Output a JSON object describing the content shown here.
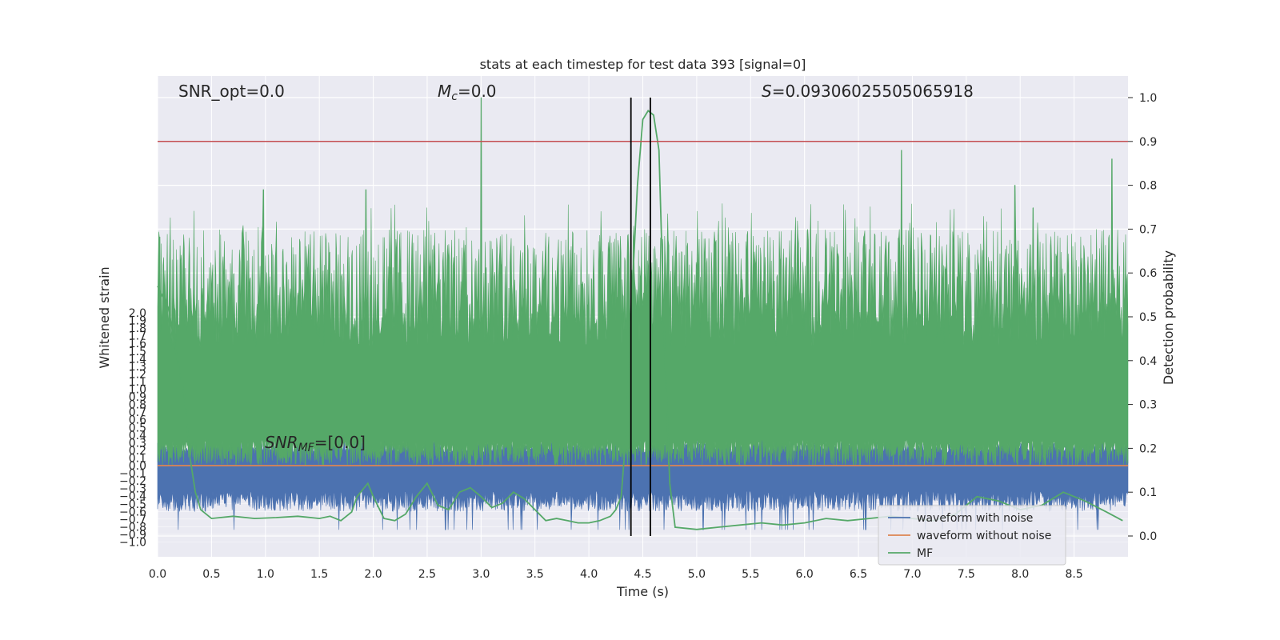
{
  "chart_data": {
    "type": "line",
    "title": "stats at each timestep for test data 393 [signal=0]",
    "xlabel": "Time (s)",
    "ylabel_left": "Whitened strain",
    "ylabel_right": "Detection probability",
    "xlim": [
      0.0,
      9.0
    ],
    "ylim_left": [
      -1.06,
      2.0
    ],
    "ylim_right": [
      -0.05,
      1.05
    ],
    "x_ticks": [
      "0.0",
      "0.5",
      "1.0",
      "1.5",
      "2.0",
      "2.5",
      "3.0",
      "3.5",
      "4.0",
      "4.5",
      "5.0",
      "5.5",
      "6.0",
      "6.5",
      "7.0",
      "7.5",
      "8.0",
      "8.5"
    ],
    "y_left_ticks": [
      "-1.0",
      "-0.9",
      "-0.8",
      "-0.7",
      "-0.6",
      "-0.5",
      "-0.4",
      "-0.3",
      "-0.2",
      "-0.1",
      "0.0",
      "0.1",
      "0.2",
      "0.3",
      "0.4",
      "0.5",
      "0.6",
      "0.7",
      "0.8",
      "0.9",
      "1.0",
      "1.1",
      "1.2",
      "1.3",
      "1.4",
      "1.5",
      "1.6",
      "1.7",
      "1.8",
      "1.9",
      "2.0"
    ],
    "y_right_ticks": [
      "0.0",
      "0.1",
      "0.2",
      "0.3",
      "0.4",
      "0.5",
      "0.6",
      "0.7",
      "0.8",
      "0.9",
      "1.0"
    ],
    "grid": true,
    "legend_position": "lower-right",
    "annotations": {
      "snr_opt": "SNR_opt=0.0",
      "mc": "=0.0",
      "s": "=0.09306025505065918",
      "snr_mf": "=[0.0]"
    },
    "threshold": {
      "value": 0.9,
      "axis": "right",
      "color": "#c44e52"
    },
    "vlines": [
      4.39,
      4.57
    ],
    "series": [
      {
        "name": "waveform with noise",
        "color": "#4c72b0",
        "axis": "left",
        "style": "noise band",
        "y_range": [
          -0.6,
          0.3
        ]
      },
      {
        "name": "waveform without noise",
        "color": "#dd8452",
        "axis": "left",
        "constant": 0.0
      },
      {
        "name": "MF",
        "color": "#55a868",
        "axis": "right",
        "x": [
          0.0,
          0.1,
          0.2,
          0.25,
          0.3,
          0.35,
          0.4,
          0.5,
          0.7,
          0.9,
          1.1,
          1.3,
          1.5,
          1.6,
          1.7,
          1.8,
          1.85,
          1.95,
          2.0,
          2.1,
          2.2,
          2.3,
          2.4,
          2.5,
          2.6,
          2.7,
          2.8,
          2.9,
          3.0,
          3.1,
          3.2,
          3.3,
          3.4,
          3.6,
          3.7,
          3.8,
          3.9,
          4.0,
          4.1,
          4.2,
          4.25,
          4.3,
          4.35,
          4.4,
          4.45,
          4.5,
          4.55,
          4.6,
          4.65,
          4.7,
          4.75,
          4.8,
          5.0,
          5.2,
          5.4,
          5.6,
          5.8,
          6.0,
          6.2,
          6.4,
          6.6,
          6.8,
          7.0,
          7.2,
          7.4,
          7.6,
          7.8,
          8.0,
          8.2,
          8.4,
          8.6,
          8.8,
          8.95
        ],
        "y": [
          0.57,
          0.52,
          0.38,
          0.32,
          0.18,
          0.1,
          0.06,
          0.04,
          0.045,
          0.04,
          0.042,
          0.045,
          0.04,
          0.045,
          0.035,
          0.055,
          0.09,
          0.12,
          0.09,
          0.04,
          0.035,
          0.05,
          0.09,
          0.12,
          0.07,
          0.06,
          0.1,
          0.11,
          0.09,
          0.065,
          0.075,
          0.1,
          0.085,
          0.035,
          0.04,
          0.035,
          0.03,
          0.03,
          0.035,
          0.045,
          0.06,
          0.09,
          0.25,
          0.55,
          0.8,
          0.95,
          0.97,
          0.96,
          0.88,
          0.45,
          0.12,
          0.02,
          0.015,
          0.02,
          0.025,
          0.03,
          0.025,
          0.03,
          0.04,
          0.035,
          0.04,
          0.045,
          0.04,
          0.035,
          0.05,
          0.09,
          0.08,
          0.06,
          0.07,
          0.1,
          0.08,
          0.055,
          0.035
        ]
      }
    ],
    "mf_noise": {
      "baseline": 0.35,
      "peaks": [
        [
          3.0,
          1.0
        ],
        [
          6.9,
          0.88
        ],
        [
          8.85,
          0.86
        ],
        [
          0.98,
          0.79
        ],
        [
          1.93,
          0.79
        ],
        [
          7.95,
          0.8
        ]
      ]
    }
  }
}
